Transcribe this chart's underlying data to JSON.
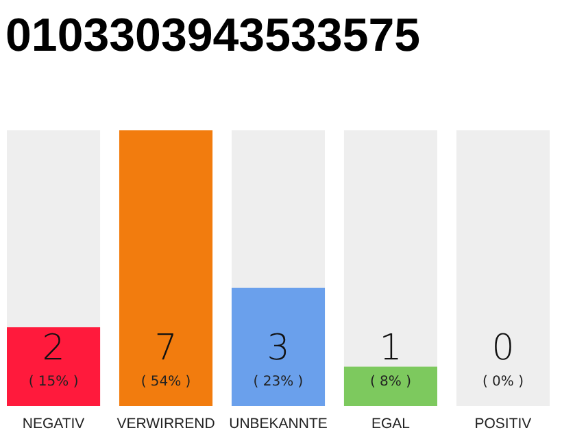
{
  "chart_data": {
    "type": "bar",
    "title": "0103303943533575",
    "categories": [
      "NEGATIV",
      "VERWIRREND",
      "UNBEKANNTE",
      "EGAL",
      "POSITIV"
    ],
    "values": [
      2,
      7,
      3,
      1,
      0
    ],
    "colors": [
      "#ff1a3c",
      "#f27c0e",
      "#6aa0ec",
      "#7dc95e",
      "#cccccc"
    ],
    "data_labels": true,
    "tick_labels": "x",
    "bands": [
      {
        "axis": "x",
        "from": "NEGATIV",
        "to": "NEGATIV",
        "color": "#eeeeee"
      },
      {
        "axis": "x",
        "from": "UNBEKANNTE",
        "to": "UNBEKANNTE",
        "color": "#eeeeee"
      },
      {
        "axis": "x",
        "from": "EGAL",
        "to": "EGAL",
        "color": "#eeeeee"
      },
      {
        "axis": "x",
        "from": "POSITIV",
        "to": "POSITIV",
        "color": "#eeeeee"
      }
    ],
    "annotations": [
      "( 15% )",
      "( 54% )",
      "( 23% )",
      "( 8% )",
      "( 0% )"
    ]
  }
}
